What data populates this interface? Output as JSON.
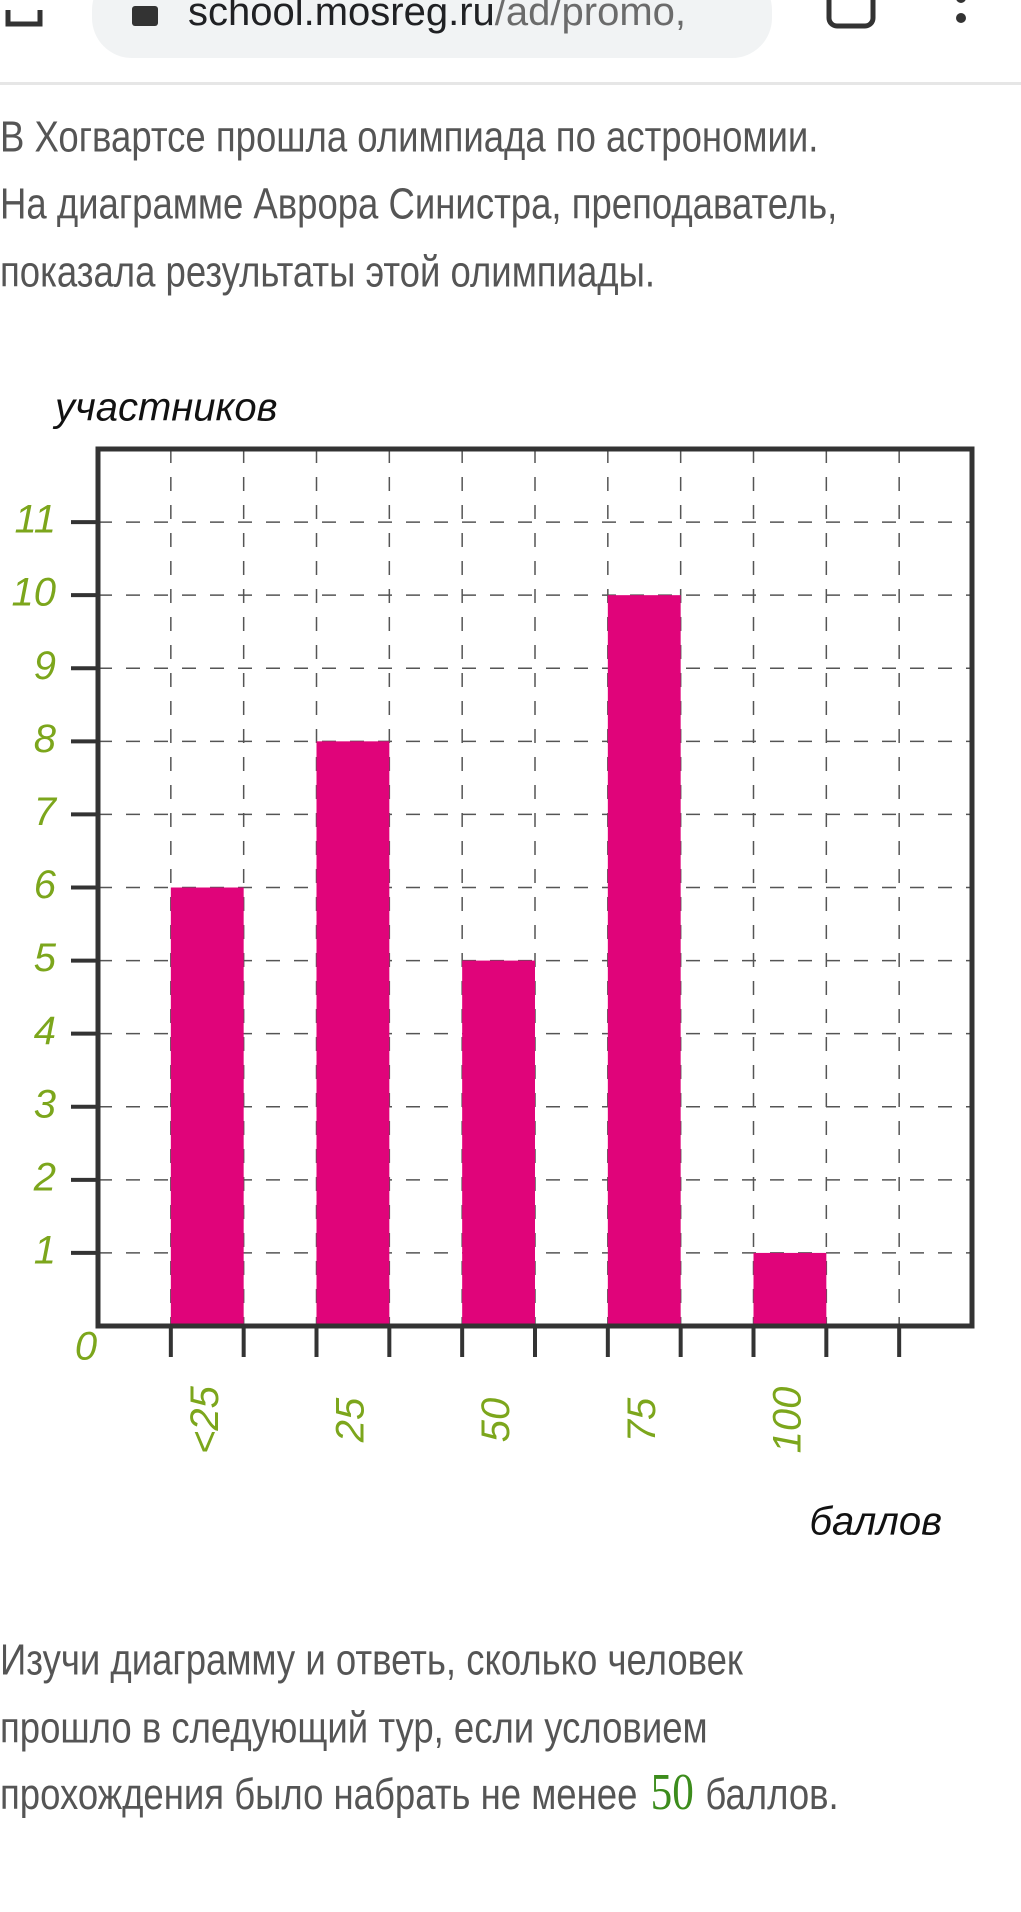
{
  "browser": {
    "url_host": "school.mosreg.ru",
    "url_path": "/ad/promo,"
  },
  "intro": {
    "lines": [
      "В Хогвартсе прошла олимпиада по астрономии.",
      "На диаграмме Аврора Синистра, преподаватель,",
      "показала результаты этой олимпиады."
    ]
  },
  "chart_data": {
    "type": "bar",
    "y_label": "участников",
    "x_label": "баллов",
    "categories": [
      "<25",
      "25",
      "50",
      "75",
      "100"
    ],
    "values": [
      6,
      8,
      5,
      10,
      1
    ],
    "color": "#e0047a",
    "ylim": [
      0,
      12
    ],
    "yticks": [
      0,
      1,
      2,
      3,
      4,
      5,
      6,
      7,
      8,
      9,
      10,
      11
    ],
    "grid": true
  },
  "question": {
    "lines": [
      "Изучи диаграмму и ответь, сколько человек",
      "прошло в следующий тур, если условием"
    ],
    "last_line_start": "прохождения было набрать не менее",
    "highlight": "50",
    "last_line_end": "баллов."
  }
}
